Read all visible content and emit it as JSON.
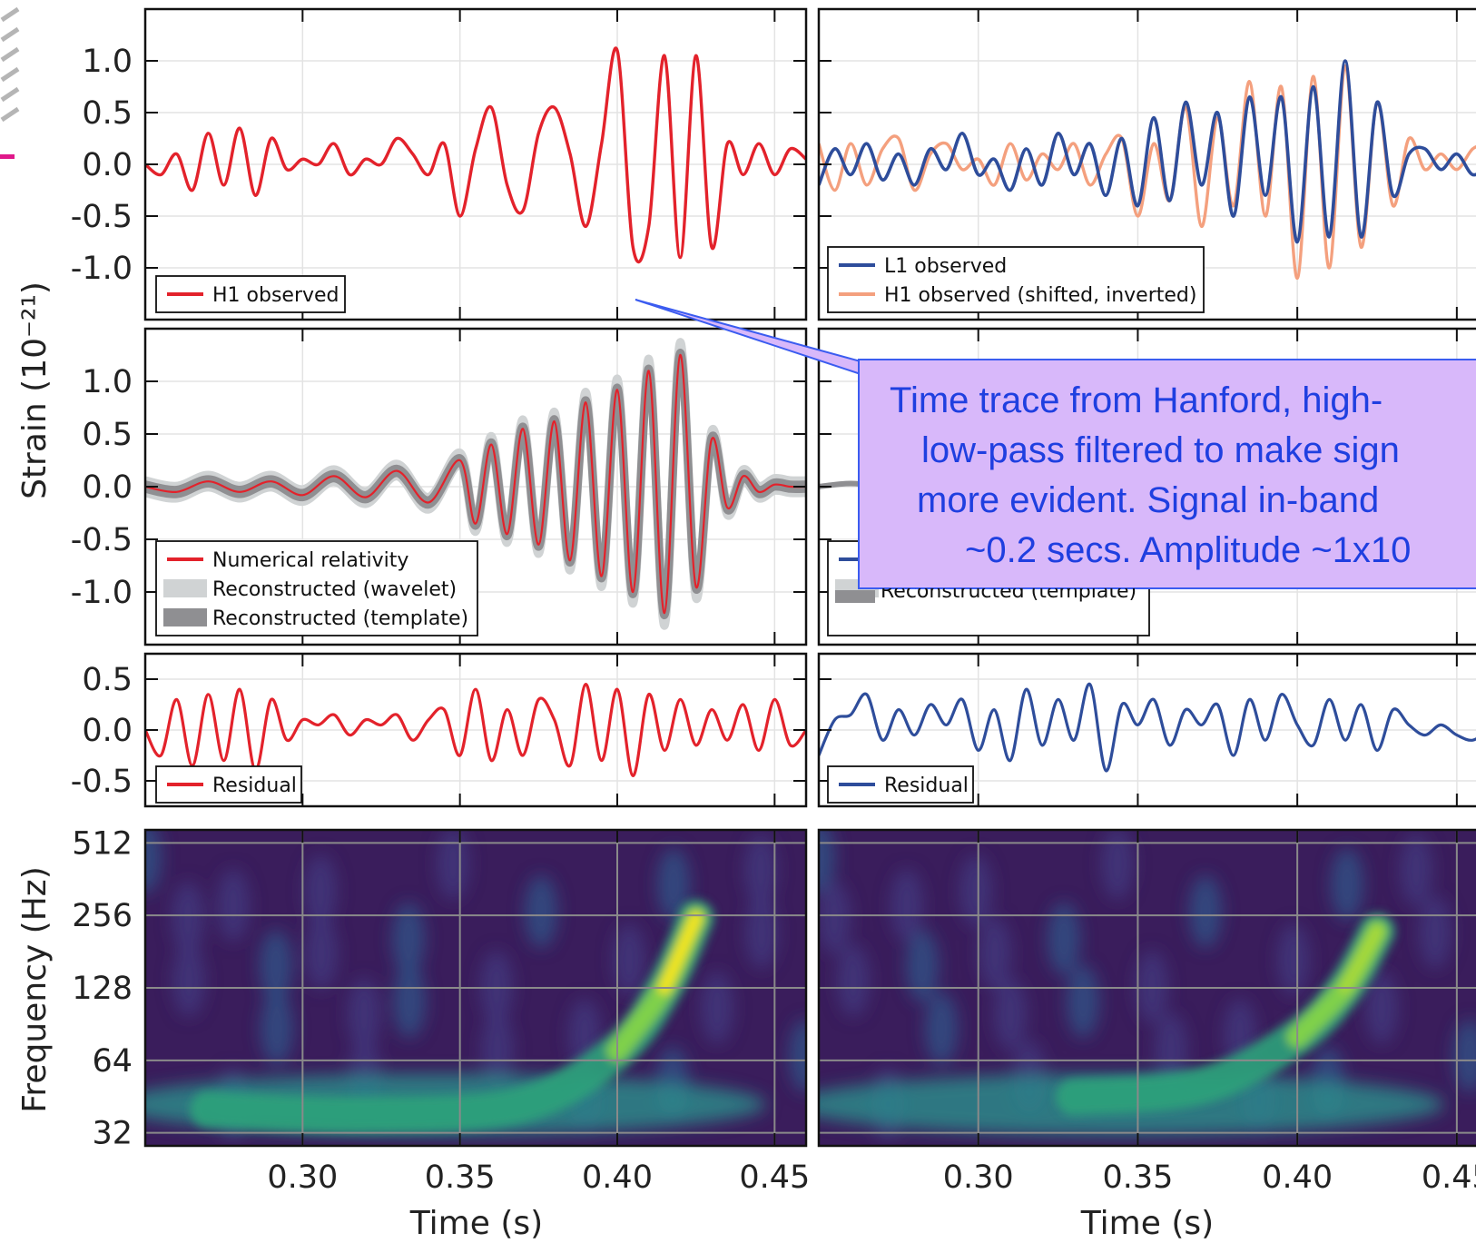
{
  "chart_data": [
    {
      "panel": "H1 observed",
      "type": "line",
      "ylabel": "Strain (10⁻²¹)",
      "xlim": [
        0.25,
        0.46
      ],
      "ylim": [
        -1.5,
        1.5
      ],
      "yticks": [
        "1.0",
        "0.5",
        "0.0",
        "-0.5",
        "-1.0"
      ],
      "series": [
        {
          "name": "H1 observed",
          "color": "#e3222b",
          "x": [
            0.25,
            0.255,
            0.26,
            0.265,
            0.27,
            0.275,
            0.28,
            0.285,
            0.29,
            0.295,
            0.3,
            0.305,
            0.31,
            0.315,
            0.32,
            0.325,
            0.33,
            0.335,
            0.34,
            0.345,
            0.35,
            0.355,
            0.36,
            0.365,
            0.37,
            0.375,
            0.38,
            0.385,
            0.39,
            0.395,
            0.4,
            0.405,
            0.41,
            0.415,
            0.42,
            0.425,
            0.43,
            0.435,
            0.44,
            0.445,
            0.45,
            0.455,
            0.46
          ],
          "y": [
            0.0,
            -0.1,
            0.1,
            -0.25,
            0.3,
            -0.2,
            0.35,
            -0.3,
            0.25,
            -0.05,
            0.05,
            0.0,
            0.2,
            -0.1,
            0.05,
            0.0,
            0.25,
            0.1,
            -0.1,
            0.2,
            -0.5,
            0.15,
            0.55,
            -0.2,
            -0.45,
            0.3,
            0.55,
            0.1,
            -0.6,
            0.2,
            1.1,
            -0.8,
            -0.6,
            1.05,
            -0.9,
            1.05,
            -0.8,
            0.2,
            -0.1,
            0.2,
            -0.1,
            0.15,
            0.05
          ]
        }
      ]
    },
    {
      "panel": "L1 observed",
      "type": "line",
      "xlim": [
        0.25,
        0.46
      ],
      "ylim": [
        -1.5,
        1.5
      ],
      "series": [
        {
          "name": "L1 observed",
          "color": "#2e4d9b",
          "x": [
            0.25,
            0.255,
            0.26,
            0.265,
            0.27,
            0.275,
            0.28,
            0.285,
            0.29,
            0.295,
            0.3,
            0.305,
            0.31,
            0.315,
            0.32,
            0.325,
            0.33,
            0.335,
            0.34,
            0.345,
            0.35,
            0.355,
            0.36,
            0.365,
            0.37,
            0.375,
            0.38,
            0.385,
            0.39,
            0.395,
            0.4,
            0.405,
            0.41,
            0.415,
            0.42,
            0.425,
            0.43,
            0.435,
            0.44,
            0.445,
            0.45,
            0.455,
            0.46
          ],
          "y": [
            -0.2,
            0.15,
            -0.1,
            0.2,
            -0.15,
            0.1,
            -0.2,
            0.15,
            -0.05,
            0.3,
            -0.1,
            0.05,
            -0.25,
            0.15,
            -0.2,
            0.3,
            -0.1,
            0.2,
            -0.3,
            0.25,
            -0.4,
            0.45,
            -0.35,
            0.6,
            -0.2,
            0.5,
            -0.5,
            0.65,
            -0.3,
            0.65,
            -0.75,
            0.75,
            -0.7,
            1.0,
            -0.7,
            0.6,
            -0.3,
            0.1,
            0.15,
            -0.05,
            0.1,
            -0.1,
            0.0
          ]
        },
        {
          "name": "H1 observed (shifted, inverted)",
          "color": "#f4a07e",
          "x": [
            0.25,
            0.255,
            0.26,
            0.265,
            0.27,
            0.275,
            0.28,
            0.285,
            0.29,
            0.295,
            0.3,
            0.305,
            0.31,
            0.315,
            0.32,
            0.325,
            0.33,
            0.335,
            0.34,
            0.345,
            0.35,
            0.355,
            0.36,
            0.365,
            0.37,
            0.375,
            0.38,
            0.385,
            0.39,
            0.395,
            0.4,
            0.405,
            0.41,
            0.415,
            0.42,
            0.425,
            0.43,
            0.435,
            0.44,
            0.445,
            0.45,
            0.455,
            0.46
          ],
          "y": [
            0.2,
            -0.25,
            0.2,
            -0.2,
            0.15,
            0.25,
            -0.25,
            0.1,
            0.2,
            -0.05,
            0.05,
            -0.2,
            0.2,
            -0.15,
            0.1,
            -0.05,
            0.2,
            -0.2,
            0.1,
            0.25,
            -0.5,
            0.2,
            -0.35,
            0.55,
            -0.6,
            0.45,
            -0.4,
            0.8,
            -0.5,
            0.75,
            -1.1,
            0.85,
            -1.0,
            0.95,
            -0.8,
            0.6,
            -0.4,
            0.25,
            -0.05,
            0.1,
            -0.05,
            0.15,
            0.2
          ]
        }
      ]
    },
    {
      "panel": "H1 reconstruction",
      "type": "line",
      "xlim": [
        0.25,
        0.46
      ],
      "ylim": [
        -1.5,
        1.5
      ],
      "yticks": [
        "1.0",
        "0.5",
        "0.0",
        "-0.5",
        "-1.0"
      ],
      "series": [
        {
          "name": "Numerical relativity",
          "color": "#e3222b",
          "x": [
            0.25,
            0.26,
            0.27,
            0.28,
            0.29,
            0.3,
            0.31,
            0.32,
            0.33,
            0.34,
            0.35,
            0.355,
            0.36,
            0.365,
            0.37,
            0.375,
            0.38,
            0.385,
            0.39,
            0.395,
            0.4,
            0.405,
            0.41,
            0.415,
            0.42,
            0.425,
            0.43,
            0.435,
            0.44,
            0.445,
            0.45,
            0.455,
            0.46
          ],
          "y": [
            0.0,
            -0.05,
            0.05,
            -0.05,
            0.05,
            -0.08,
            0.1,
            -0.1,
            0.15,
            -0.15,
            0.25,
            -0.35,
            0.4,
            -0.45,
            0.55,
            -0.55,
            0.62,
            -0.7,
            0.8,
            -0.85,
            0.92,
            -1.0,
            1.1,
            -1.2,
            1.25,
            -0.95,
            0.45,
            -0.2,
            0.1,
            -0.05,
            0.02,
            0.0,
            0.0
          ]
        },
        {
          "name": "Reconstructed (wavelet)",
          "color": "#d0d3d4"
        },
        {
          "name": "Reconstructed (template)",
          "color": "#8f8f92"
        }
      ]
    },
    {
      "panel": "L1 reconstruction",
      "type": "line",
      "xlim": [
        0.25,
        0.46
      ],
      "series": [
        {
          "name": "Reconstructed (template)",
          "color": "#8f8f92"
        }
      ]
    },
    {
      "panel": "H1 residual",
      "type": "line",
      "xlim": [
        0.25,
        0.46
      ],
      "ylim": [
        -0.75,
        0.75
      ],
      "yticks": [
        "0.5",
        "0.0",
        "-0.5"
      ],
      "series": [
        {
          "name": "Residual",
          "color": "#e3222b",
          "x": [
            0.25,
            0.255,
            0.26,
            0.265,
            0.27,
            0.275,
            0.28,
            0.285,
            0.29,
            0.295,
            0.3,
            0.305,
            0.31,
            0.315,
            0.32,
            0.325,
            0.33,
            0.335,
            0.34,
            0.345,
            0.35,
            0.355,
            0.36,
            0.365,
            0.37,
            0.375,
            0.38,
            0.385,
            0.39,
            0.395,
            0.4,
            0.405,
            0.41,
            0.415,
            0.42,
            0.425,
            0.43,
            0.435,
            0.44,
            0.445,
            0.45,
            0.455,
            0.46
          ],
          "y": [
            0.0,
            -0.25,
            0.3,
            -0.35,
            0.35,
            -0.3,
            0.4,
            -0.4,
            0.3,
            -0.1,
            0.1,
            0.05,
            0.15,
            -0.05,
            0.1,
            0.05,
            0.15,
            -0.1,
            0.1,
            0.2,
            -0.25,
            0.4,
            -0.3,
            0.2,
            -0.25,
            0.3,
            0.1,
            -0.35,
            0.45,
            -0.3,
            0.4,
            -0.45,
            0.35,
            -0.2,
            0.3,
            -0.15,
            0.2,
            -0.1,
            0.25,
            -0.2,
            0.3,
            -0.15,
            0.0
          ]
        }
      ]
    },
    {
      "panel": "L1 residual",
      "type": "line",
      "xlim": [
        0.25,
        0.46
      ],
      "ylim": [
        -0.75,
        0.75
      ],
      "series": [
        {
          "name": "Residual",
          "color": "#2e4d9b",
          "x": [
            0.25,
            0.255,
            0.26,
            0.265,
            0.27,
            0.275,
            0.28,
            0.285,
            0.29,
            0.295,
            0.3,
            0.305,
            0.31,
            0.315,
            0.32,
            0.325,
            0.33,
            0.335,
            0.34,
            0.345,
            0.35,
            0.355,
            0.36,
            0.365,
            0.37,
            0.375,
            0.38,
            0.385,
            0.39,
            0.395,
            0.4,
            0.405,
            0.41,
            0.415,
            0.42,
            0.425,
            0.43,
            0.435,
            0.44,
            0.445,
            0.45,
            0.455,
            0.46
          ],
          "y": [
            -0.25,
            0.1,
            0.15,
            0.35,
            -0.1,
            0.2,
            -0.05,
            0.25,
            0.05,
            0.3,
            -0.2,
            0.2,
            -0.3,
            0.4,
            -0.15,
            0.3,
            -0.1,
            0.45,
            -0.4,
            0.25,
            0.05,
            0.3,
            -0.15,
            0.2,
            0.05,
            0.25,
            -0.25,
            0.3,
            -0.1,
            0.35,
            0.05,
            -0.15,
            0.3,
            -0.1,
            0.25,
            -0.2,
            0.2,
            0.05,
            -0.05,
            0.05,
            -0.05,
            -0.1,
            0.0
          ]
        }
      ]
    },
    {
      "panel": "H1 spectrogram",
      "type": "heatmap",
      "ylabel": "Frequency (Hz)",
      "xlabel": "Time (s)",
      "xlim": [
        0.25,
        0.46
      ],
      "xticks": [
        "0.30",
        "0.35",
        "0.40",
        "0.45"
      ],
      "yticks": [
        "512",
        "256",
        "128",
        "64",
        "32"
      ],
      "colormap": "viridis",
      "track": {
        "x": [
          0.27,
          0.32,
          0.37,
          0.4,
          0.415,
          0.425
        ],
        "freq": [
          40,
          38,
          42,
          70,
          128,
          250
        ]
      }
    },
    {
      "panel": "L1 spectrogram",
      "type": "heatmap",
      "xlabel": "Time (s)",
      "xlim": [
        0.25,
        0.46
      ],
      "xticks": [
        "0.30",
        "0.35",
        "0.40",
        "0.45"
      ],
      "colormap": "viridis",
      "track": {
        "x": [
          0.33,
          0.37,
          0.4,
          0.415,
          0.425
        ],
        "freq": [
          45,
          50,
          80,
          128,
          220
        ]
      }
    }
  ],
  "callout": {
    "lines": [
      "Time trace from Hanford, high-",
      "low-pass filtered to make sign",
      "more evident. Signal in-band",
      "~0.2 secs. Amplitude ~1x10"
    ]
  },
  "labels": {
    "strain_ylabel": "Strain (10⁻²¹)",
    "freq_ylabel": "Frequency (Hz)",
    "time_xlabel_left": "Time (s)",
    "time_xlabel_right": "Time (s)",
    "clipped_legend_text": "Reconstructed (template)"
  },
  "colors": {
    "h1": "#e3222b",
    "l1": "#2e4d9b",
    "h1_inverted": "#f4a07e",
    "callout_fill": "#d8b8fa",
    "callout_text": "#1f3fe0"
  }
}
